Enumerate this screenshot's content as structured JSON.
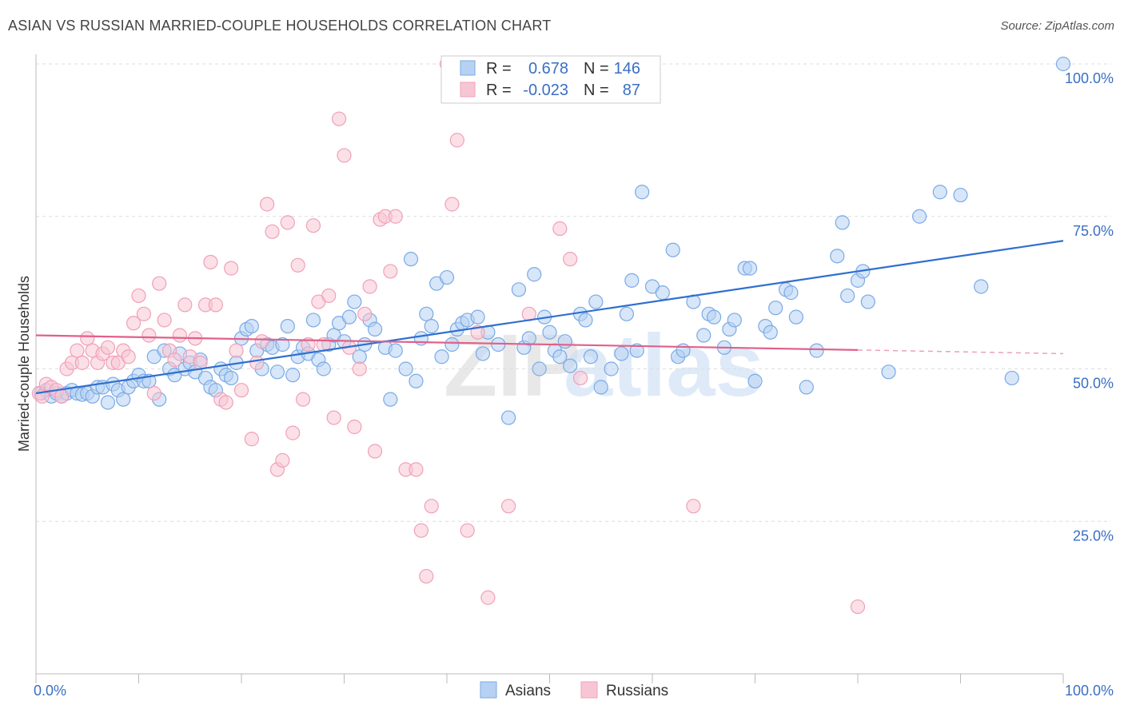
{
  "chart_data": {
    "type": "scatter",
    "title": "ASIAN VS RUSSIAN MARRIED-COUPLE HOUSEHOLDS CORRELATION CHART",
    "source": "Source: ZipAtlas.com",
    "ylabel": "Married-couple Households",
    "xlabel": "",
    "xlim": [
      0,
      100
    ],
    "ylim": [
      0,
      100
    ],
    "x_tick_labels": [
      "0.0%",
      "100.0%"
    ],
    "y_tick_labels": [
      "25.0%",
      "50.0%",
      "75.0%",
      "100.0%"
    ],
    "y_ticks": [
      25,
      50,
      75,
      100
    ],
    "grid": "horizontal-dashed",
    "watermark": {
      "zip": "ZIP",
      "atlas": "atlas"
    },
    "legend": {
      "placement": "bottom-center",
      "items": [
        "Asians",
        "Russians"
      ]
    },
    "stats": {
      "r_label": "R =",
      "n_label": "N =",
      "rows": [
        {
          "r": "0.678",
          "n": "146"
        },
        {
          "r": "-0.023",
          "n": "87"
        }
      ]
    },
    "series": [
      {
        "name": "Asians",
        "color": "#7aaae6",
        "fill": "#b7d1f3",
        "trend_color": "#2f6fd0",
        "trend": {
          "x0": 0,
          "y0": 46.0,
          "x1": 100,
          "y1": 71.0,
          "solid_to": 100
        },
        "points": [
          [
            0.5,
            46
          ],
          [
            1,
            46.5
          ],
          [
            1.5,
            45.5
          ],
          [
            2,
            46
          ],
          [
            2.5,
            45.5
          ],
          [
            3,
            46
          ],
          [
            3.5,
            46.5
          ],
          [
            4,
            46
          ],
          [
            4.5,
            45.8
          ],
          [
            5,
            46
          ],
          [
            5.5,
            45.5
          ],
          [
            6,
            47
          ],
          [
            6.5,
            47
          ],
          [
            7,
            44.5
          ],
          [
            7.5,
            47.5
          ],
          [
            8,
            46.5
          ],
          [
            8.5,
            45
          ],
          [
            9,
            47
          ],
          [
            9.5,
            48
          ],
          [
            10,
            49
          ],
          [
            10.5,
            48
          ],
          [
            11,
            48
          ],
          [
            11.5,
            52
          ],
          [
            12,
            45
          ],
          [
            12.5,
            53
          ],
          [
            13,
            50
          ],
          [
            13.5,
            49
          ],
          [
            14,
            52.5
          ],
          [
            14.5,
            50
          ],
          [
            15,
            51
          ],
          [
            15.5,
            49.5
          ],
          [
            16,
            51.5
          ],
          [
            16.5,
            48.5
          ],
          [
            17,
            47
          ],
          [
            17.5,
            46.5
          ],
          [
            18,
            50
          ],
          [
            18.5,
            49
          ],
          [
            19,
            48.5
          ],
          [
            19.5,
            51
          ],
          [
            20,
            55
          ],
          [
            20.5,
            56.5
          ],
          [
            21,
            57
          ],
          [
            21.5,
            53
          ],
          [
            22,
            50
          ],
          [
            22.5,
            54
          ],
          [
            23,
            53.5
          ],
          [
            23.5,
            49.5
          ],
          [
            24,
            54
          ],
          [
            24.5,
            57
          ],
          [
            25,
            49
          ],
          [
            25.5,
            52
          ],
          [
            26,
            53.5
          ],
          [
            26.5,
            52.5
          ],
          [
            27,
            58
          ],
          [
            27.5,
            51.5
          ],
          [
            28,
            50
          ],
          [
            28.5,
            54
          ],
          [
            29,
            55.5
          ],
          [
            29.5,
            57.5
          ],
          [
            30,
            54.5
          ],
          [
            30.5,
            58.5
          ],
          [
            31,
            61
          ],
          [
            31.5,
            52
          ],
          [
            32,
            54
          ],
          [
            32.5,
            58
          ],
          [
            33,
            56.5
          ],
          [
            34,
            53.5
          ],
          [
            34.5,
            45
          ],
          [
            35,
            53
          ],
          [
            36,
            50
          ],
          [
            36.5,
            68
          ],
          [
            37,
            48
          ],
          [
            37.5,
            55
          ],
          [
            38,
            59
          ],
          [
            38.5,
            57
          ],
          [
            39,
            64
          ],
          [
            39.5,
            52
          ],
          [
            40,
            65
          ],
          [
            40.5,
            54
          ],
          [
            41,
            56.5
          ],
          [
            41.5,
            57.5
          ],
          [
            42,
            58
          ],
          [
            43,
            58.5
          ],
          [
            43.5,
            52.5
          ],
          [
            44,
            56
          ],
          [
            45,
            54
          ],
          [
            46,
            42
          ],
          [
            47,
            63
          ],
          [
            47.5,
            53.5
          ],
          [
            48,
            55
          ],
          [
            48.5,
            65.5
          ],
          [
            49,
            50
          ],
          [
            49.5,
            58.5
          ],
          [
            50,
            56
          ],
          [
            50.5,
            53
          ],
          [
            51,
            52
          ],
          [
            51.5,
            54.5
          ],
          [
            52,
            50.5
          ],
          [
            53,
            59
          ],
          [
            53.5,
            58
          ],
          [
            54,
            52
          ],
          [
            54.5,
            61
          ],
          [
            55,
            47
          ],
          [
            56,
            50
          ],
          [
            57,
            52.5
          ],
          [
            57.5,
            59
          ],
          [
            58,
            64.5
          ],
          [
            58.5,
            53
          ],
          [
            59,
            79
          ],
          [
            60,
            63.5
          ],
          [
            61,
            62.5
          ],
          [
            62,
            69.5
          ],
          [
            62.5,
            52
          ],
          [
            63,
            53
          ],
          [
            64,
            61
          ],
          [
            65,
            55.5
          ],
          [
            65.5,
            59
          ],
          [
            66,
            58.5
          ],
          [
            67,
            53.5
          ],
          [
            67.5,
            56.5
          ],
          [
            68,
            58
          ],
          [
            69,
            66.5
          ],
          [
            69.5,
            66.5
          ],
          [
            70,
            48
          ],
          [
            71,
            57
          ],
          [
            71.5,
            56
          ],
          [
            72,
            60
          ],
          [
            73,
            63
          ],
          [
            73.5,
            62.5
          ],
          [
            74,
            58.5
          ],
          [
            75,
            47
          ],
          [
            76,
            53
          ],
          [
            78,
            68.5
          ],
          [
            78.5,
            74
          ],
          [
            79,
            62
          ],
          [
            80,
            64.5
          ],
          [
            80.5,
            66
          ],
          [
            81,
            61
          ],
          [
            83,
            49.5
          ],
          [
            86,
            75
          ],
          [
            88,
            79
          ],
          [
            90,
            78.5
          ],
          [
            92,
            63.5
          ],
          [
            95,
            48.5
          ],
          [
            100,
            100
          ]
        ]
      },
      {
        "name": "Russians",
        "color": "#f0a0b8",
        "fill": "#f7c6d4",
        "trend_color": "#e0608a",
        "trend": {
          "x0": 0,
          "y0": 55.5,
          "x1": 100,
          "y1": 52.5,
          "solid_to": 80
        },
        "points": [
          [
            0.3,
            46
          ],
          [
            0.6,
            45.5
          ],
          [
            1,
            47.5
          ],
          [
            1.5,
            47
          ],
          [
            2,
            46.5
          ],
          [
            2.5,
            45.5
          ],
          [
            3,
            50
          ],
          [
            3.5,
            51
          ],
          [
            4,
            53
          ],
          [
            4.5,
            51
          ],
          [
            5,
            55
          ],
          [
            5.5,
            53
          ],
          [
            6,
            51
          ],
          [
            6.5,
            52.5
          ],
          [
            7,
            53.5
          ],
          [
            7.5,
            51
          ],
          [
            8,
            51
          ],
          [
            8.5,
            53
          ],
          [
            9,
            52
          ],
          [
            9.5,
            57.5
          ],
          [
            10,
            62
          ],
          [
            10.5,
            59
          ],
          [
            11,
            55.5
          ],
          [
            11.5,
            46
          ],
          [
            12,
            64
          ],
          [
            12.5,
            58
          ],
          [
            13,
            53
          ],
          [
            13.5,
            51.5
          ],
          [
            14,
            55.5
          ],
          [
            14.5,
            60.5
          ],
          [
            15,
            52
          ],
          [
            15.5,
            55
          ],
          [
            16,
            51
          ],
          [
            16.5,
            60.5
          ],
          [
            17,
            67.5
          ],
          [
            17.5,
            60.5
          ],
          [
            18,
            45
          ],
          [
            18.5,
            44.5
          ],
          [
            19,
            66.5
          ],
          [
            19.5,
            53
          ],
          [
            20,
            46.5
          ],
          [
            21,
            38.5
          ],
          [
            21.5,
            51
          ],
          [
            22,
            54.5
          ],
          [
            22.5,
            77
          ],
          [
            23,
            72.5
          ],
          [
            23.5,
            33.5
          ],
          [
            24,
            35
          ],
          [
            24.5,
            74
          ],
          [
            25,
            39.5
          ],
          [
            25.5,
            67
          ],
          [
            26,
            45
          ],
          [
            26.5,
            54
          ],
          [
            27,
            73.5
          ],
          [
            27.5,
            61
          ],
          [
            28,
            54
          ],
          [
            28.5,
            62
          ],
          [
            29,
            42
          ],
          [
            29.5,
            91
          ],
          [
            30,
            85
          ],
          [
            30.5,
            53.5
          ],
          [
            31,
            40.5
          ],
          [
            31.5,
            50
          ],
          [
            32,
            59
          ],
          [
            32.5,
            63.5
          ],
          [
            33,
            36.5
          ],
          [
            33.5,
            74.5
          ],
          [
            34,
            75
          ],
          [
            34.5,
            66
          ],
          [
            35,
            75
          ],
          [
            36,
            33.5
          ],
          [
            37,
            33.5
          ],
          [
            37.5,
            23.5
          ],
          [
            38,
            16
          ],
          [
            38.5,
            27.5
          ],
          [
            40,
            100
          ],
          [
            40.5,
            77
          ],
          [
            41,
            87.5
          ],
          [
            42,
            23.5
          ],
          [
            43,
            56
          ],
          [
            44,
            12.5
          ],
          [
            46,
            27.5
          ],
          [
            48,
            59
          ],
          [
            51,
            73
          ],
          [
            52,
            68
          ],
          [
            53,
            48.5
          ],
          [
            64,
            27.5
          ],
          [
            80,
            11
          ]
        ]
      }
    ]
  }
}
